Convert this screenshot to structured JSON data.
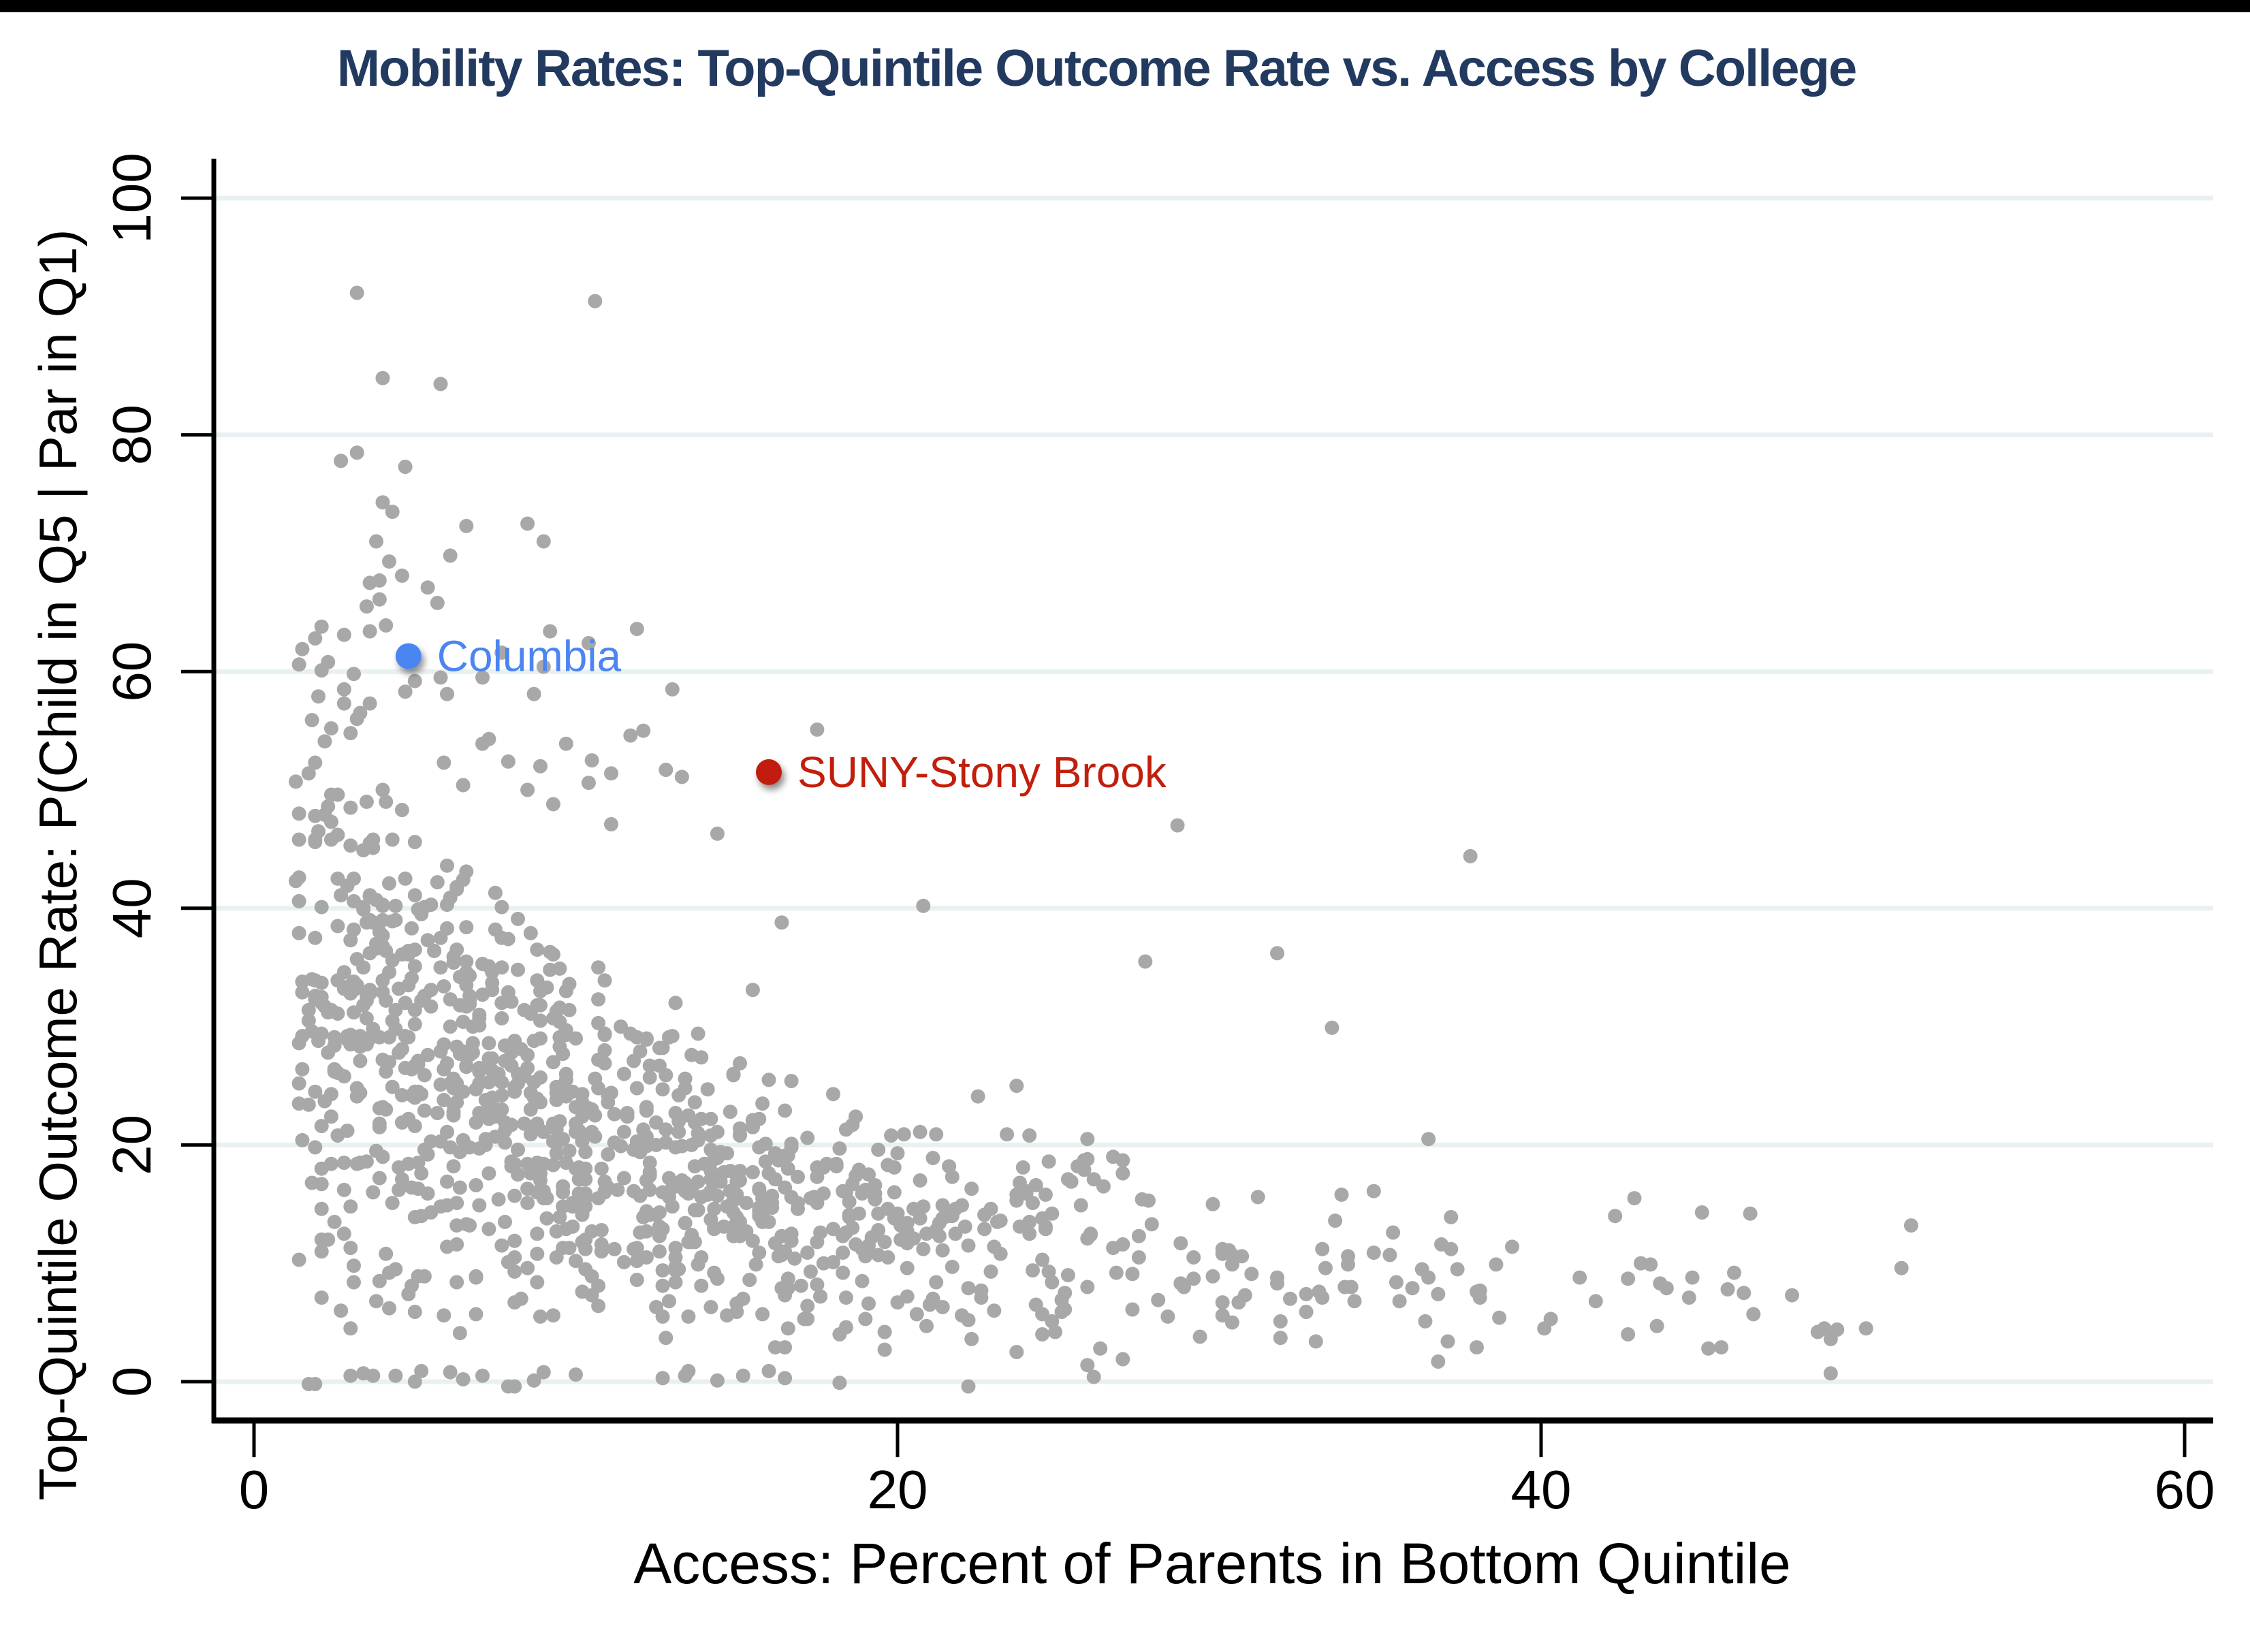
{
  "page": {
    "background": "#ffffff",
    "top_bar_color": "#000000"
  },
  "chart_data": {
    "type": "scatter",
    "title": "Mobility Rates: Top-Quintile Outcome Rate vs. Access by College",
    "xlabel": "Access: Percent of Parents in Bottom Quintile",
    "ylabel": "Top-Quintile Outcome Rate: P(Child in Q5 | Par in Q1)",
    "xlim": [
      0,
      60
    ],
    "ylim": [
      0,
      100
    ],
    "x_ticks": [
      0,
      20,
      40,
      60
    ],
    "y_ticks": [
      0,
      20,
      40,
      60,
      80,
      100
    ],
    "grid": "horizontal gridlines at each y tick, on white background",
    "legend": "none",
    "colors": {
      "title": "#233a60",
      "axis": "#000000",
      "gridline": "#e8f1f2",
      "point_gray": "#a8a8a8",
      "columbia_blue": "#4c85f2",
      "suny_red": "#c11f0c"
    },
    "labeled_points": [
      {
        "label": "Columbia",
        "x": 4.8,
        "y": 61.3,
        "color": "#4c85f2"
      },
      {
        "label": "SUNY-Stony Brook",
        "x": 16.0,
        "y": 51.5,
        "color": "#c11f0c"
      }
    ],
    "notable_points": [
      [
        3.2,
        92.0
      ],
      [
        10.6,
        91.3
      ],
      [
        4.0,
        84.8
      ],
      [
        5.8,
        84.3
      ],
      [
        3.2,
        78.5
      ],
      [
        2.7,
        77.8
      ],
      [
        4.0,
        74.3
      ],
      [
        4.3,
        73.5
      ],
      [
        3.8,
        71.0
      ],
      [
        4.6,
        68.1
      ],
      [
        3.6,
        67.5
      ],
      [
        5.4,
        67.1
      ],
      [
        3.9,
        66.1
      ],
      [
        5.7,
        65.8
      ],
      [
        2.8,
        63.1
      ],
      [
        3.6,
        63.4
      ],
      [
        9.2,
        63.4
      ],
      [
        11.9,
        63.6
      ],
      [
        10.4,
        62.4
      ],
      [
        7.7,
        61.6
      ],
      [
        1.4,
        60.6
      ],
      [
        2.1,
        60.1
      ],
      [
        3.1,
        59.8
      ],
      [
        5.0,
        59.2
      ],
      [
        5.8,
        59.5
      ],
      [
        2.8,
        58.5
      ],
      [
        4.7,
        58.3
      ],
      [
        6.0,
        58.1
      ],
      [
        3.3,
        56.5
      ],
      [
        2.4,
        55.2
      ],
      [
        7.3,
        54.3
      ],
      [
        9.7,
        53.9
      ],
      [
        11.7,
        54.6
      ],
      [
        17.5,
        55.1
      ],
      [
        5.9,
        52.3
      ],
      [
        7.9,
        52.4
      ],
      [
        8.9,
        52.0
      ],
      [
        11.1,
        51.4
      ],
      [
        12.8,
        51.7
      ],
      [
        6.5,
        50.4
      ],
      [
        4.1,
        49.0
      ],
      [
        9.3,
        48.8
      ],
      [
        11.1,
        47.1
      ],
      [
        14.4,
        46.3
      ],
      [
        28.7,
        47.0
      ],
      [
        37.8,
        44.4
      ],
      [
        20.8,
        40.2
      ],
      [
        27.7,
        35.5
      ],
      [
        31.8,
        36.2
      ],
      [
        33.5,
        29.9
      ],
      [
        36.5,
        20.5
      ],
      [
        42.9,
        15.5
      ],
      [
        45.0,
        14.3
      ],
      [
        46.5,
        14.2
      ],
      [
        51.5,
        13.2
      ],
      [
        44.7,
        8.8
      ],
      [
        43.7,
        8.3
      ],
      [
        42.7,
        8.7
      ],
      [
        45.8,
        7.8
      ],
      [
        46.3,
        7.5
      ],
      [
        49.2,
        4.4
      ],
      [
        43.6,
        4.7
      ],
      [
        42.7,
        4.0
      ],
      [
        45.2,
        2.8
      ],
      [
        45.6,
        2.9
      ],
      [
        50.1,
        4.5
      ]
    ],
    "cloud": {
      "note": "≈1200 unlabeled colleges form the gray cloud; individual positions estimated. Cloud regenerated deterministically from these distribution parameters read off the figure.",
      "count": 1150,
      "seed": 20250206,
      "x_min": 1.3,
      "x_scale": 11.5,
      "x_exp": 0.85,
      "x_cap": 51.5,
      "base_a": 34,
      "base_decay": 11,
      "base_c": 8.5,
      "f_lo": 0.1,
      "f_hi": 1.75,
      "tail_prob": 0.05,
      "tail_mult": 1.8,
      "zero_prob": 0.028,
      "y_max": 93
    }
  }
}
